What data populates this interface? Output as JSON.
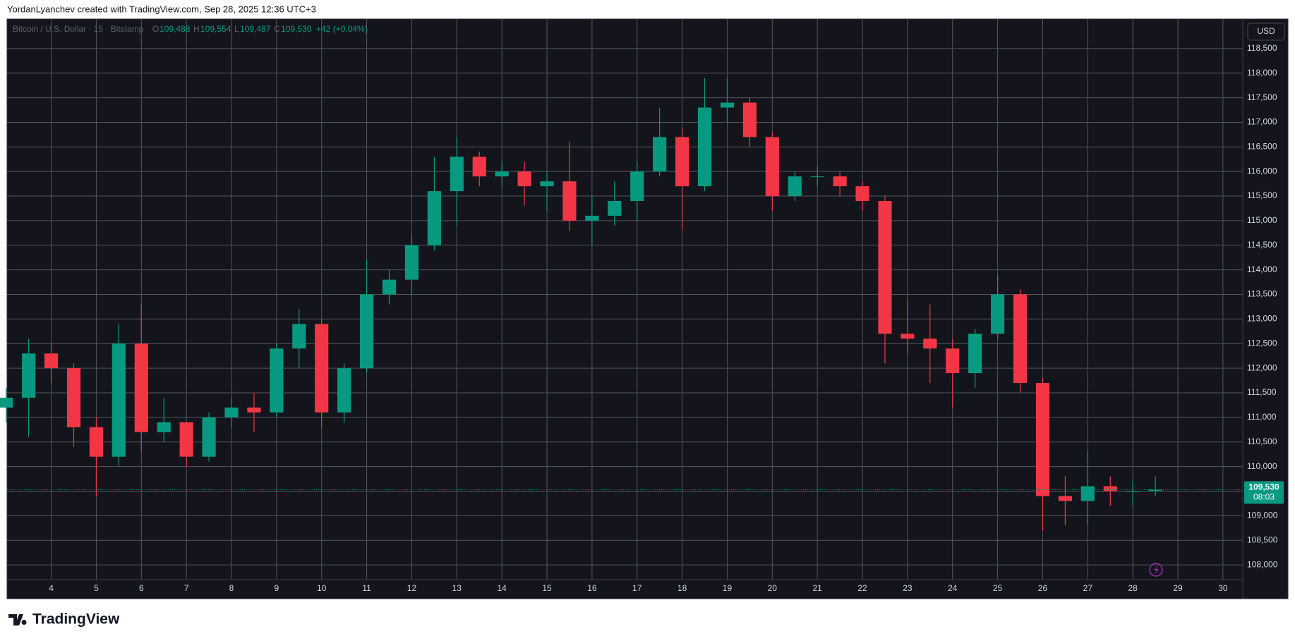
{
  "header": {
    "credit": "YordanLyanchev created with TradingView.com, Sep 28, 2025 12:36 UTC+3"
  },
  "legend": {
    "symbol": "Bitcoin / U.S. Dollar · 15 · Bitstamp",
    "o_label": "O",
    "o": "109,488",
    "h_label": "H",
    "h": "109,554",
    "l_label": "L",
    "l": "109,487",
    "c_label": "C",
    "c": "109,530",
    "change": "+42 (+0.04%)"
  },
  "currency": "USD",
  "countdown": "08:03",
  "logo": "TradingView",
  "chart_data": {
    "type": "candlestick",
    "x": [
      3,
      3.5,
      4,
      4.5,
      5,
      5.5,
      6,
      6.5,
      7,
      7.5,
      8,
      8.5,
      9,
      9.5,
      10,
      10.5,
      11,
      11.5,
      12,
      12.5,
      13,
      13.5,
      14,
      14.5,
      15,
      15.5,
      16,
      16.5,
      17,
      17.5,
      18,
      18.5,
      19,
      19.5,
      20,
      20.5,
      21,
      21.5,
      22,
      22.5,
      23,
      23.5,
      24,
      24.5,
      25,
      25.5,
      26,
      26.5,
      27,
      27.5,
      28,
      28.5
    ],
    "open": [
      111200,
      111400,
      112300,
      112000,
      110800,
      110200,
      112500,
      110700,
      110900,
      110200,
      111000,
      111200,
      111100,
      112400,
      112900,
      111100,
      112000,
      113500,
      113800,
      114500,
      115600,
      116300,
      115900,
      116000,
      115700,
      115800,
      115000,
      115100,
      115400,
      116000,
      116700,
      115700,
      117300,
      117400,
      116700,
      115500,
      115900,
      115900,
      115700,
      115400,
      112700,
      112600,
      112400,
      111900,
      112700,
      113500,
      111700,
      109400,
      109300,
      109600,
      109500,
      109500
    ],
    "high": [
      111600,
      112600,
      112500,
      112100,
      111000,
      112900,
      113300,
      111400,
      110900,
      111100,
      111400,
      111500,
      112500,
      113200,
      113000,
      112100,
      114200,
      114000,
      114700,
      116300,
      116700,
      116400,
      116200,
      116200,
      116000,
      116600,
      115500,
      115800,
      116200,
      117300,
      116900,
      117900,
      117900,
      117500,
      116800,
      116000,
      116100,
      116000,
      115800,
      115500,
      113400,
      113300,
      112600,
      112800,
      113900,
      113600,
      111800,
      109800,
      110300,
      109800,
      109700,
      109800
    ],
    "low": [
      110900,
      110600,
      111700,
      110400,
      109400,
      110000,
      110300,
      110500,
      110000,
      110100,
      110800,
      110700,
      111000,
      112000,
      110800,
      110900,
      111900,
      113300,
      113500,
      114400,
      114900,
      115700,
      115700,
      115300,
      115200,
      114800,
      114500,
      114900,
      115000,
      115900,
      114800,
      115600,
      117000,
      116500,
      115200,
      115400,
      115700,
      115500,
      115200,
      112100,
      112300,
      111700,
      111200,
      111600,
      112600,
      111500,
      108700,
      108800,
      108800,
      109200,
      109200,
      109400
    ],
    "close": [
      111400,
      112300,
      112000,
      110800,
      110200,
      112500,
      110700,
      110900,
      110200,
      111000,
      111200,
      111100,
      112400,
      112900,
      111100,
      112000,
      113500,
      113800,
      114500,
      115600,
      116300,
      115900,
      116000,
      115700,
      115800,
      115000,
      115100,
      115400,
      116000,
      116700,
      115700,
      117300,
      117400,
      116700,
      115500,
      115900,
      115900,
      115700,
      115400,
      112700,
      112600,
      112400,
      111900,
      112700,
      113500,
      111700,
      109400,
      109300,
      109600,
      109500,
      109500,
      109530
    ],
    "up_color": "#089981",
    "down_color": "#f23645",
    "last_price": {
      "value": 109530,
      "label": "109,530"
    },
    "xlim": [
      3.02,
      30.44
    ],
    "xticks": [
      4,
      5,
      6,
      7,
      8,
      9,
      10,
      11,
      12,
      13,
      14,
      15,
      16,
      17,
      18,
      19,
      20,
      21,
      22,
      23,
      24,
      25,
      26,
      27,
      28,
      29,
      30
    ],
    "ylim": [
      107700,
      119100
    ],
    "yticks": [
      {
        "value": 108000,
        "label": "108,000"
      },
      {
        "value": 108500,
        "label": "108,500"
      },
      {
        "value": 109000,
        "label": "109,000"
      },
      {
        "value": 109500,
        "label": "109,500"
      },
      {
        "value": 110000,
        "label": "110,000"
      },
      {
        "value": 110500,
        "label": "110,500"
      },
      {
        "value": 111000,
        "label": "111,000"
      },
      {
        "value": 111500,
        "label": "111,500"
      },
      {
        "value": 112000,
        "label": "112,000"
      },
      {
        "value": 112500,
        "label": "112,500"
      },
      {
        "value": 113000,
        "label": "113,000"
      },
      {
        "value": 113500,
        "label": "113,500"
      },
      {
        "value": 114000,
        "label": "114,000"
      },
      {
        "value": 114500,
        "label": "114,500"
      },
      {
        "value": 115000,
        "label": "115,000"
      },
      {
        "value": 115500,
        "label": "115,500"
      },
      {
        "value": 116000,
        "label": "116,000"
      },
      {
        "value": 116500,
        "label": "116,500"
      },
      {
        "value": 117000,
        "label": "117,000"
      },
      {
        "value": 117500,
        "label": "117,500"
      },
      {
        "value": 118000,
        "label": "118,000"
      },
      {
        "value": 118500,
        "label": "118,500"
      }
    ],
    "grid": true
  }
}
